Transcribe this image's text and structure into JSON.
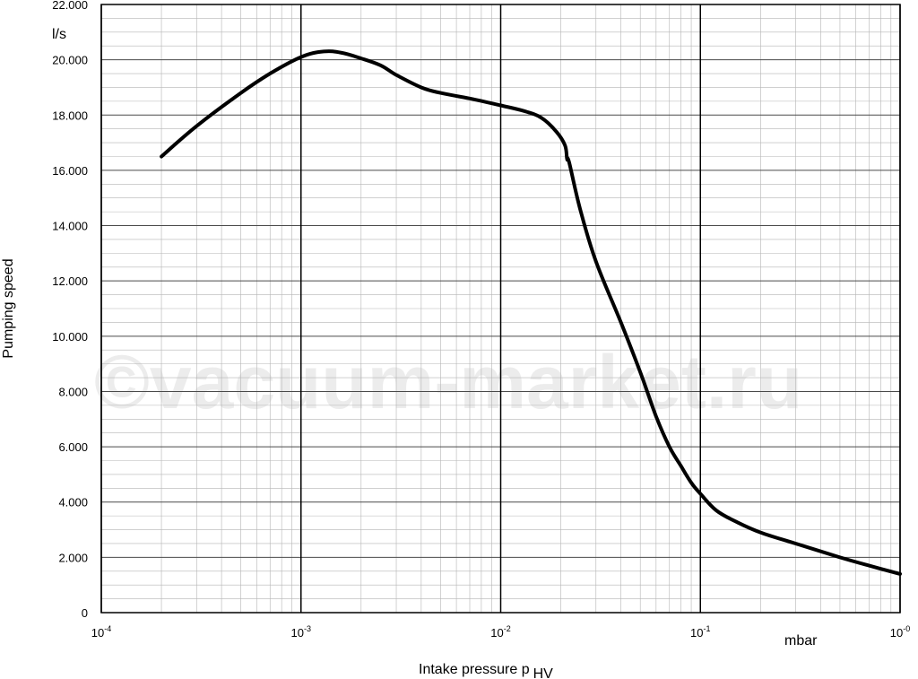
{
  "chart_data": {
    "type": "line",
    "x_scale": "log",
    "xlim": [
      0.0001,
      1
    ],
    "ylim": [
      0,
      22000
    ],
    "ylabel": "Pumping speed",
    "y_unit": "l/s",
    "x_unit": "mbar",
    "xlabel_main": "Intake pressure p",
    "xlabel_sub": "HV",
    "y_ticks": [
      {
        "value": 0,
        "label": "0"
      },
      {
        "value": 2000,
        "label": "2.000"
      },
      {
        "value": 4000,
        "label": "4.000"
      },
      {
        "value": 6000,
        "label": "6.000"
      },
      {
        "value": 8000,
        "label": "8.000"
      },
      {
        "value": 10000,
        "label": "10.000"
      },
      {
        "value": 12000,
        "label": "12.000"
      },
      {
        "value": 14000,
        "label": "14.000"
      },
      {
        "value": 16000,
        "label": "16.000"
      },
      {
        "value": 18000,
        "label": "18.000"
      },
      {
        "value": 20000,
        "label": "20.000"
      },
      {
        "value": 22000,
        "label": "22.000"
      }
    ],
    "x_ticks": [
      {
        "value": 0.0001,
        "base": "10",
        "exp": "-4"
      },
      {
        "value": 0.001,
        "base": "10",
        "exp": "-3"
      },
      {
        "value": 0.01,
        "base": "10",
        "exp": "-2"
      },
      {
        "value": 0.1,
        "base": "10",
        "exp": "-1"
      },
      {
        "value": 1,
        "base": "10",
        "exp": "-0"
      }
    ],
    "grid": true,
    "series": [
      {
        "x": [
          0.0002,
          0.0003,
          0.0005,
          0.0007,
          0.001,
          0.0013,
          0.0016,
          0.002,
          0.0025,
          0.003,
          0.004,
          0.005,
          0.007,
          0.01,
          0.013,
          0.016,
          0.019,
          0.021,
          0.0215,
          0.022,
          0.025,
          0.03,
          0.04,
          0.05,
          0.06,
          0.07,
          0.08,
          0.09,
          0.1,
          0.12,
          0.15,
          0.2,
          0.3,
          0.5,
          0.7,
          1.0
        ],
        "y": [
          16500,
          17600,
          18800,
          19500,
          20100,
          20300,
          20250,
          20050,
          19800,
          19450,
          19000,
          18800,
          18600,
          18350,
          18150,
          17900,
          17400,
          16900,
          16400,
          16300,
          14600,
          12700,
          10500,
          8700,
          7100,
          6000,
          5300,
          4700,
          4300,
          3700,
          3300,
          2900,
          2500,
          2000,
          1700,
          1400
        ]
      }
    ],
    "watermark": "©vacuum-market.ru"
  }
}
